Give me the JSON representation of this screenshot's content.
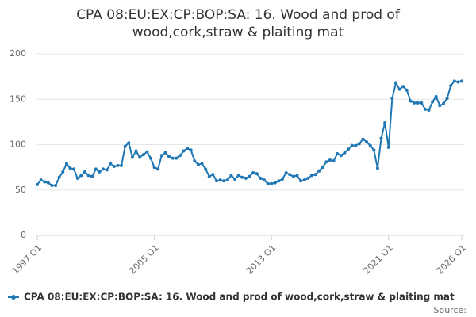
{
  "chart_data": {
    "type": "line",
    "title": "CPA 08:EU:EX:CP:BOP:SA: 16. Wood and prod of wood,cork,straw & plaiting mat",
    "source": "Source:",
    "categories": [
      "1997 Q1",
      null,
      null,
      null,
      null,
      null,
      null,
      null,
      null,
      null,
      null,
      null,
      null,
      null,
      null,
      null,
      null,
      null,
      null,
      null,
      null,
      null,
      null,
      null,
      null,
      null,
      null,
      null,
      null,
      null,
      null,
      null,
      "2005 Q1",
      null,
      null,
      null,
      null,
      null,
      null,
      null,
      null,
      null,
      null,
      null,
      null,
      null,
      null,
      null,
      null,
      null,
      null,
      null,
      null,
      null,
      null,
      null,
      null,
      null,
      null,
      null,
      null,
      null,
      null,
      null,
      "2013 Q1",
      null,
      null,
      null,
      null,
      null,
      null,
      null,
      null,
      null,
      null,
      null,
      null,
      null,
      null,
      null,
      null,
      null,
      null,
      null,
      null,
      null,
      null,
      null,
      null,
      null,
      null,
      null,
      null,
      null,
      null,
      null,
      "2021 Q1",
      null,
      null,
      null,
      null,
      null,
      null,
      null,
      null,
      null,
      null,
      null,
      null,
      null,
      null,
      null,
      null,
      null,
      null,
      null,
      "2026 Q1"
    ],
    "series": [
      {
        "name": "CPA 08:EU:EX:CP:BOP:SA: 16. Wood and prod of wood,cork,straw & plaiting mat",
        "color": "#1f77b4",
        "values": [
          56,
          61,
          59,
          58,
          55,
          55,
          64,
          70,
          79,
          74,
          73,
          63,
          66,
          70,
          66,
          65,
          73,
          70,
          73,
          72,
          79,
          76,
          77,
          77,
          98,
          102,
          86,
          93,
          86,
          89,
          92,
          85,
          75,
          73,
          88,
          91,
          87,
          85,
          85,
          88,
          93,
          96,
          94,
          82,
          78,
          79,
          73,
          65,
          67,
          60,
          61,
          60,
          61,
          66,
          62,
          66,
          64,
          63,
          65,
          69,
          68,
          63,
          61,
          57,
          57,
          58,
          60,
          62,
          69,
          67,
          65,
          66,
          60,
          61,
          63,
          66,
          67,
          71,
          75,
          81,
          83,
          82,
          90,
          88,
          91,
          95,
          99,
          99,
          101,
          106,
          103,
          99,
          94,
          74,
          107,
          124,
          97,
          151,
          168,
          161,
          164,
          160,
          148,
          146,
          146,
          146,
          139,
          138,
          147,
          153,
          143,
          145,
          151,
          165,
          170,
          169,
          170
        ]
      }
    ],
    "ylim": [
      0,
      200
    ],
    "yticks": [
      0,
      50,
      100,
      150,
      200
    ],
    "grid": true
  }
}
